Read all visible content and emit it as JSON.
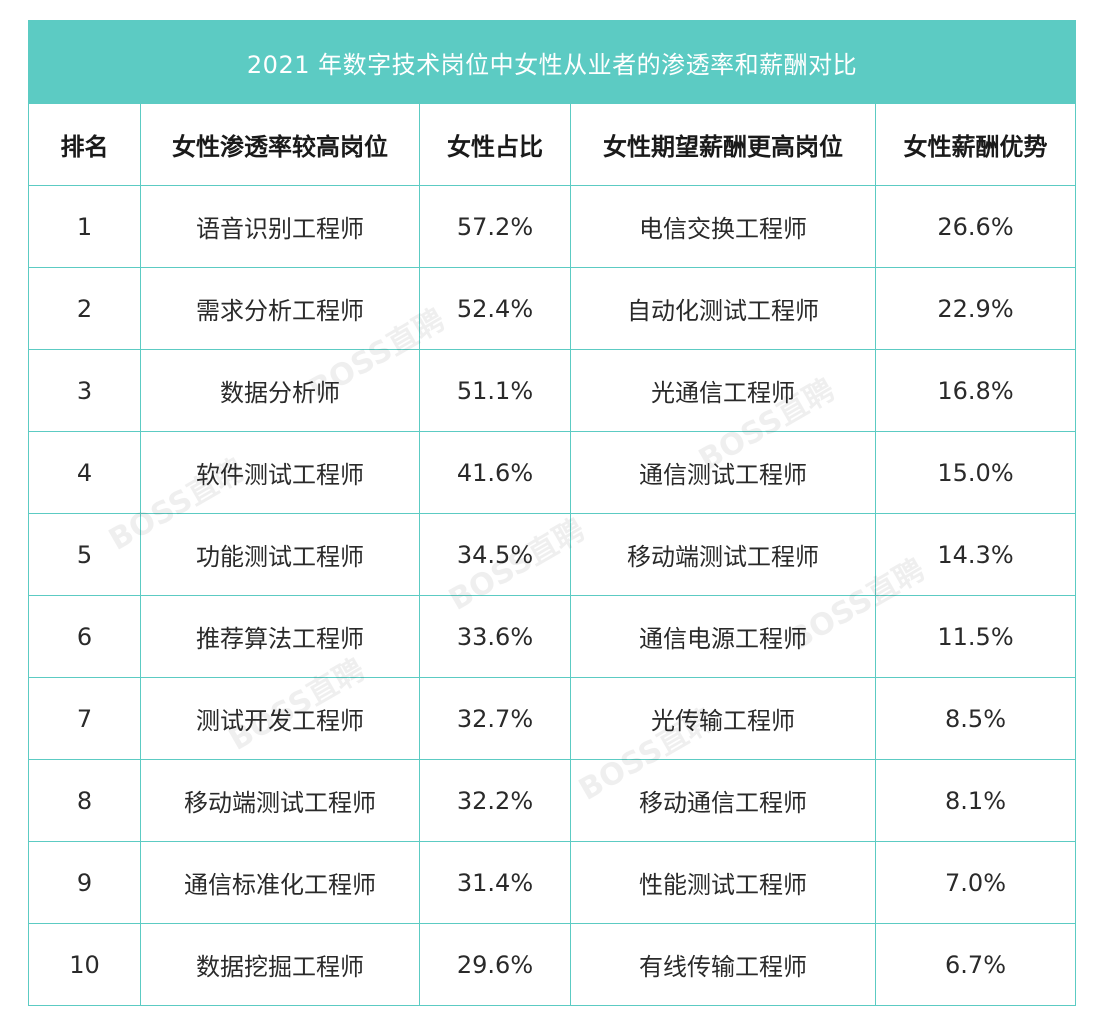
{
  "title": "2021 年数字技术岗位中女性从业者的渗透率和薪酬对比",
  "headers": [
    "排名",
    "女性渗透率较高岗位",
    "女性占比",
    "女性期望薪酬更高岗位",
    "女性薪酬优势"
  ],
  "rows": [
    {
      "rank": "1",
      "job_a": "语音识别工程师",
      "share": "57.2%",
      "job_b": "电信交换工程师",
      "advantage": "26.6%"
    },
    {
      "rank": "2",
      "job_a": "需求分析工程师",
      "share": "52.4%",
      "job_b": "自动化测试工程师",
      "advantage": "22.9%"
    },
    {
      "rank": "3",
      "job_a": "数据分析师",
      "share": "51.1%",
      "job_b": "光通信工程师",
      "advantage": "16.8%"
    },
    {
      "rank": "4",
      "job_a": "软件测试工程师",
      "share": "41.6%",
      "job_b": "通信测试工程师",
      "advantage": "15.0%"
    },
    {
      "rank": "5",
      "job_a": "功能测试工程师",
      "share": "34.5%",
      "job_b": "移动端测试工程师",
      "advantage": "14.3%"
    },
    {
      "rank": "6",
      "job_a": "推荐算法工程师",
      "share": "33.6%",
      "job_b": "通信电源工程师",
      "advantage": "11.5%"
    },
    {
      "rank": "7",
      "job_a": "测试开发工程师",
      "share": "32.7%",
      "job_b": "光传输工程师",
      "advantage": "8.5%"
    },
    {
      "rank": "8",
      "job_a": "移动端测试工程师",
      "share": "32.2%",
      "job_b": "移动通信工程师",
      "advantage": "8.1%"
    },
    {
      "rank": "9",
      "job_a": "通信标准化工程师",
      "share": "31.4%",
      "job_b": "性能测试工程师",
      "advantage": "7.0%"
    },
    {
      "rank": "10",
      "job_a": "数据挖掘工程师",
      "share": "29.6%",
      "job_b": "有线传输工程师",
      "advantage": "6.7%"
    }
  ],
  "watermark_text": "BOSS直聘",
  "colors": {
    "accent": "#5ccbc3",
    "title_text": "#ffffff",
    "body_text": "#222222"
  }
}
